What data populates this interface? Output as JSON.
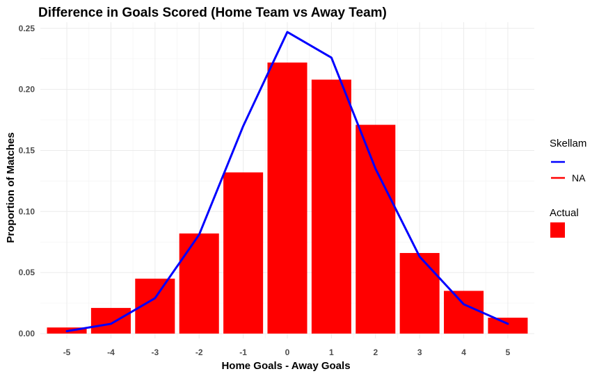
{
  "chart_data": {
    "type": "bar",
    "title": "Difference in Goals Scored (Home Team vs Away Team)",
    "xlabel": "Home Goals - Away Goals",
    "ylabel": "Proportion of Matches",
    "categories": [
      "-5",
      "-4",
      "-3",
      "-2",
      "-1",
      "0",
      "1",
      "2",
      "3",
      "4",
      "5"
    ],
    "x": [
      -5,
      -4,
      -3,
      -2,
      -1,
      0,
      1,
      2,
      3,
      4,
      5
    ],
    "ylim": [
      0,
      0.255
    ],
    "yticks": [
      0.0,
      0.05,
      0.1,
      0.15,
      0.2,
      0.25
    ],
    "ytick_labels": [
      "0.00",
      "0.05",
      "0.10",
      "0.15",
      "0.20",
      "0.25"
    ],
    "grid": true,
    "legend_position": "right",
    "series": [
      {
        "name": "Actual",
        "kind": "bar",
        "color": "#ff0000",
        "values": [
          0.005,
          0.021,
          0.045,
          0.082,
          0.132,
          0.222,
          0.208,
          0.171,
          0.066,
          0.035,
          0.013
        ]
      },
      {
        "name": "Skellam",
        "kind": "line",
        "color": "#0000ff",
        "values": [
          0.002,
          0.008,
          0.029,
          0.081,
          0.17,
          0.247,
          0.226,
          0.135,
          0.063,
          0.024,
          0.008
        ]
      }
    ],
    "legend": {
      "groups": [
        {
          "title": "Skellam",
          "entries": [
            {
              "label": "",
              "color": "#0000ff",
              "shape": "line"
            },
            {
              "label": "NA",
              "color": "#ff0000",
              "shape": "line"
            }
          ]
        },
        {
          "title": "Actual",
          "entries": [
            {
              "label": "",
              "color": "#ff0000",
              "shape": "box"
            }
          ]
        }
      ]
    }
  }
}
